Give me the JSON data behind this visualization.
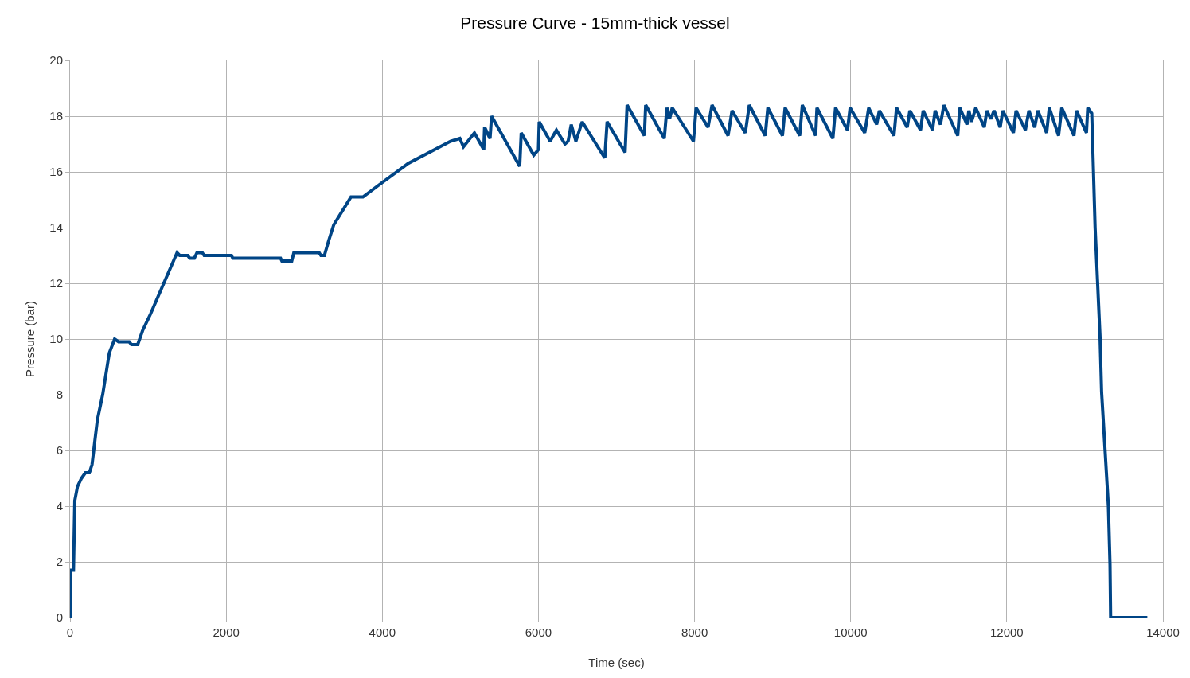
{
  "chart_data": {
    "type": "line",
    "title": "Pressure Curve - 15mm-thick vessel",
    "xlabel": "Time (sec)",
    "ylabel": "Pressure (bar)",
    "xlim": [
      0,
      14000
    ],
    "xticks": [
      0,
      2000,
      4000,
      6000,
      8000,
      10000,
      12000,
      14000
    ],
    "ylim": [
      0,
      20
    ],
    "yticks": [
      0,
      2,
      4,
      6,
      8,
      10,
      12,
      14,
      16,
      18,
      20
    ],
    "grid": true,
    "marker": "none",
    "line_style": "solid",
    "x": [
      0,
      10,
      44,
      61,
      95,
      146,
      197,
      248,
      282,
      350,
      418,
      503,
      571,
      622,
      758,
      786,
      867,
      929,
      1031,
      1371,
      1405,
      1507,
      1534,
      1592,
      1626,
      1694,
      1718,
      2068,
      2085,
      2697,
      2714,
      2840,
      2867,
      3191,
      3214,
      3258,
      3310,
      3378,
      3599,
      3752,
      3990,
      4330,
      4670,
      4874,
      4993,
      5040,
      5180,
      5300,
      5310,
      5380,
      5400,
      5760,
      5780,
      5940,
      6000,
      6010,
      6150,
      6230,
      6340,
      6380,
      6420,
      6480,
      6560,
      6850,
      6880,
      7110,
      7136,
      7357,
      7374,
      7612,
      7646,
      7680,
      7714,
      7986,
      8020,
      8173,
      8224,
      8429,
      8480,
      8650,
      8701,
      8905,
      8939,
      9126,
      9160,
      9347,
      9381,
      9551,
      9568,
      9772,
      9806,
      9959,
      9993,
      10180,
      10231,
      10333,
      10367,
      10554,
      10588,
      10724,
      10758,
      10895,
      10929,
      11048,
      11082,
      11150,
      11194,
      11371,
      11398,
      11490,
      11514,
      11548,
      11602,
      11711,
      11745,
      11796,
      11837,
      11915,
      11949,
      12085,
      12119,
      12238,
      12283,
      12357,
      12398,
      12510,
      12544,
      12663,
      12704,
      12860,
      12894,
      13020,
      13037,
      13088,
      13131,
      13194,
      13214,
      13301,
      13322,
      13330,
      13800
    ],
    "series": [
      {
        "color": "#004586",
        "values": [
          0,
          1.7,
          1.7,
          4.2,
          4.7,
          5.0,
          5.2,
          5.2,
          5.5,
          7.1,
          8.0,
          9.5,
          10.0,
          9.9,
          9.9,
          9.8,
          9.8,
          10.3,
          10.9,
          13.1,
          13.0,
          13.0,
          12.9,
          12.9,
          13.1,
          13.1,
          13.0,
          13.0,
          12.9,
          12.9,
          12.8,
          12.8,
          13.1,
          13.1,
          13.0,
          13.0,
          13.5,
          14.1,
          15.1,
          15.1,
          15.6,
          16.3,
          16.8,
          17.1,
          17.2,
          16.9,
          17.4,
          16.8,
          17.6,
          17.2,
          18.0,
          16.2,
          17.4,
          16.6,
          16.8,
          17.8,
          17.1,
          17.5,
          17.0,
          17.1,
          17.7,
          17.1,
          17.8,
          16.5,
          17.8,
          16.7,
          18.4,
          17.3,
          18.4,
          17.2,
          18.3,
          17.9,
          18.3,
          17.1,
          18.3,
          17.6,
          18.4,
          17.3,
          18.2,
          17.4,
          18.4,
          17.3,
          18.3,
          17.3,
          18.3,
          17.3,
          18.4,
          17.3,
          18.3,
          17.2,
          18.3,
          17.5,
          18.3,
          17.4,
          18.3,
          17.7,
          18.2,
          17.3,
          18.3,
          17.6,
          18.2,
          17.5,
          18.2,
          17.5,
          18.2,
          17.7,
          18.4,
          17.3,
          18.3,
          17.7,
          18.2,
          17.8,
          18.3,
          17.6,
          18.2,
          17.9,
          18.2,
          17.6,
          18.2,
          17.4,
          18.2,
          17.5,
          18.2,
          17.6,
          18.2,
          17.4,
          18.3,
          17.3,
          18.3,
          17.3,
          18.2,
          17.4,
          18.3,
          18.1,
          14.0,
          10.1,
          8.1,
          4.0,
          1.9,
          0,
          0
        ]
      }
    ]
  }
}
